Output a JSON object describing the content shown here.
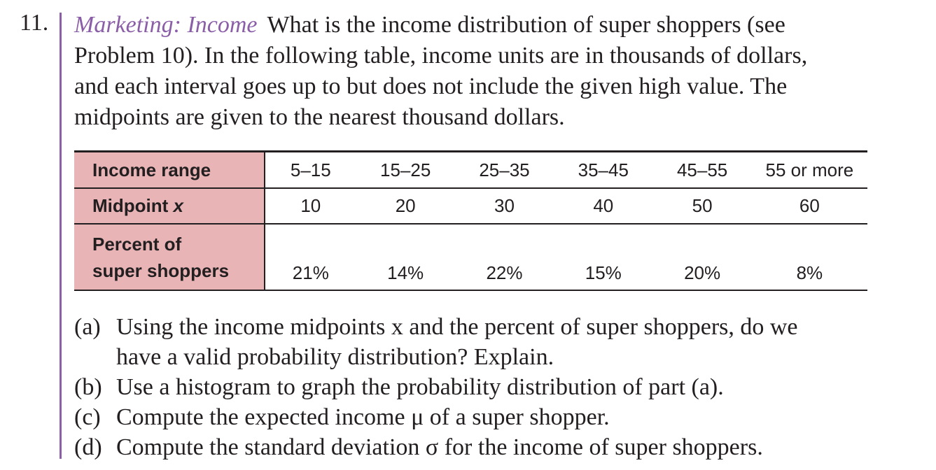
{
  "problem": {
    "number": "11.",
    "topic": "Marketing: Income",
    "intro_lines": [
      "What is the income distribution of super shoppers (see",
      "Problem 10). In the following table, income units are in thousands of dollars,",
      "and each interval goes up to but does not include the given high value. The",
      "midpoints are given to the nearest thousand dollars."
    ]
  },
  "table": {
    "row_headers": {
      "income_range": "Income range",
      "midpoint_label": "Midpoint ",
      "midpoint_var": "x",
      "percent_line1": "Percent of",
      "percent_line2": "super shoppers"
    },
    "income_ranges": [
      "5–15",
      "15–25",
      "25–35",
      "35–45",
      "45–55",
      "55 or more"
    ],
    "midpoints": [
      "10",
      "20",
      "30",
      "40",
      "50",
      "60"
    ],
    "percents": [
      "21%",
      "14%",
      "22%",
      "15%",
      "20%",
      "8%"
    ]
  },
  "parts": [
    {
      "label": "(a)",
      "lines": [
        "Using the income midpoints x and the percent of super shoppers, do we",
        "have a valid probability distribution? Explain."
      ]
    },
    {
      "label": "(b)",
      "lines": [
        "Use a histogram to graph the probability distribution of part (a)."
      ]
    },
    {
      "label": "(c)",
      "lines": [
        "Compute the expected income μ of a super shopper."
      ]
    },
    {
      "label": "(d)",
      "lines": [
        "Compute the standard deviation σ for the income of super shoppers."
      ]
    }
  ]
}
